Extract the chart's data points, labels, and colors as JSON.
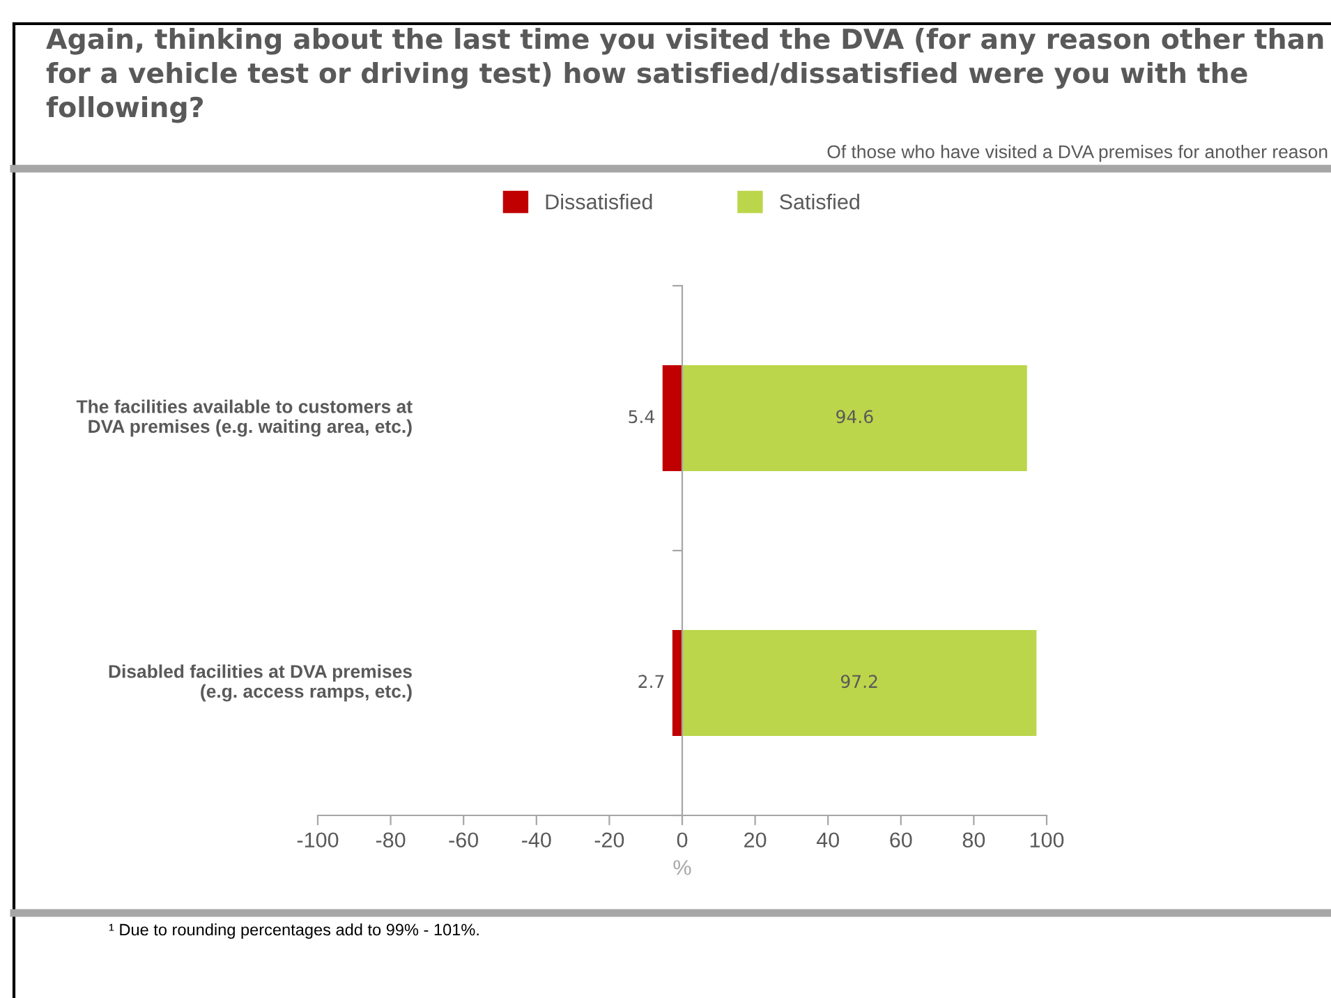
{
  "chart_data": {
    "type": "bar",
    "orientation": "horizontal",
    "title": "Again, thinking about the last time you visited the DVA (for any reason other than for a vehicle test or driving test) how satisfied/dissatisfied were you with the following?",
    "subtitle": "Of those who have visited a DVA premises for another reason",
    "xlabel": "%",
    "categories": [
      "The facilities available to customers at\nDVA premises (e.g. waiting area, etc.)",
      "Disabled facilities at DVA premises\n(e.g. access ramps, etc.)"
    ],
    "series": [
      {
        "name": "Dissatisfied",
        "color": "#c00000",
        "base": [
          -5.4,
          -2.7
        ],
        "values": [
          5.4,
          2.7
        ],
        "value_labels": [
          "5.4",
          "2.7"
        ]
      },
      {
        "name": "Satisfied",
        "color": "#bbd64a",
        "values": [
          94.6,
          97.2
        ],
        "value_labels": [
          "94.6",
          "97.2"
        ]
      }
    ],
    "xlim": [
      -100,
      100
    ],
    "xticks": [
      -100,
      -80,
      -60,
      -40,
      -20,
      0,
      20,
      40,
      60,
      80,
      100
    ],
    "legend": "top",
    "annotations": [
      "¹ Due to rounding percentages add to 99% - 101%."
    ]
  }
}
